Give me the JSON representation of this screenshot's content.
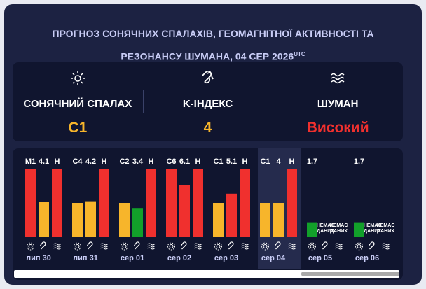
{
  "header": {
    "title": "ПРОГНОЗ СОНЯЧНИХ СПАЛАХІВ, ГЕОМАГНІТНОЇ АКТИВНОСТІ ТА РЕЗОНАНСУ ШУМАНА, 04 СЕР 2026",
    "timezone": "UTC"
  },
  "summary": [
    {
      "label": "СОНЯЧНИЙ СПАЛАХ",
      "value": "C1",
      "color": "#f7b52b"
    },
    {
      "label": "K-ІНДЕКС",
      "value": "4",
      "color": "#f7b52b"
    },
    {
      "label": "ШУМАН",
      "value": "Високий",
      "color": "#f0302e"
    }
  ],
  "days": [
    {
      "date": "лип 30",
      "bars": [
        {
          "label": "M1",
          "level": 8,
          "color": "#f0302e"
        },
        {
          "label": "4.1",
          "level": 4.1,
          "color": "#f7b52b"
        },
        {
          "label": "Н",
          "level": 8,
          "color": "#f0302e"
        }
      ]
    },
    {
      "date": "лип 31",
      "bars": [
        {
          "label": "C4",
          "level": 4,
          "color": "#f7b52b"
        },
        {
          "label": "4.2",
          "level": 4.2,
          "color": "#f7b52b"
        },
        {
          "label": "Н",
          "level": 8,
          "color": "#f0302e"
        }
      ]
    },
    {
      "date": "сер 01",
      "bars": [
        {
          "label": "C2",
          "level": 4,
          "color": "#f7b52b"
        },
        {
          "label": "3.4",
          "level": 3.4,
          "color": "#12a02a"
        },
        {
          "label": "Н",
          "level": 8,
          "color": "#f0302e"
        }
      ]
    },
    {
      "date": "сер 02",
      "bars": [
        {
          "label": "C6",
          "level": 8,
          "color": "#f0302e"
        },
        {
          "label": "6.1",
          "level": 6.1,
          "color": "#f0302e"
        },
        {
          "label": "Н",
          "level": 8,
          "color": "#f0302e"
        }
      ]
    },
    {
      "date": "сер 03",
      "bars": [
        {
          "label": "C1",
          "level": 4,
          "color": "#f7b52b"
        },
        {
          "label": "5.1",
          "level": 5.1,
          "color": "#f0302e"
        },
        {
          "label": "Н",
          "level": 8,
          "color": "#f0302e"
        }
      ]
    },
    {
      "date": "сер 04",
      "selected": true,
      "bars": [
        {
          "label": "C1",
          "level": 4,
          "color": "#f7b52b"
        },
        {
          "label": "4",
          "level": 4,
          "color": "#f7b52b"
        },
        {
          "label": "Н",
          "level": 8,
          "color": "#f0302e"
        }
      ]
    },
    {
      "date": "сер 05",
      "bars": [
        {
          "label": "1.7",
          "level": 1.7,
          "color": "#12a02a"
        },
        {
          "label": "НЕМАЄ ДАНИХ"
        },
        {
          "label": "НЕМАЄ ДАНИХ"
        }
      ]
    },
    {
      "date": "сер 06",
      "bars": [
        {
          "label": "1.7",
          "level": 1.7,
          "color": "#12a02a"
        },
        {
          "label": "НЕМАЄ ДАНИХ"
        },
        {
          "label": "НЕМАЄ ДАНИХ"
        }
      ]
    }
  ]
}
